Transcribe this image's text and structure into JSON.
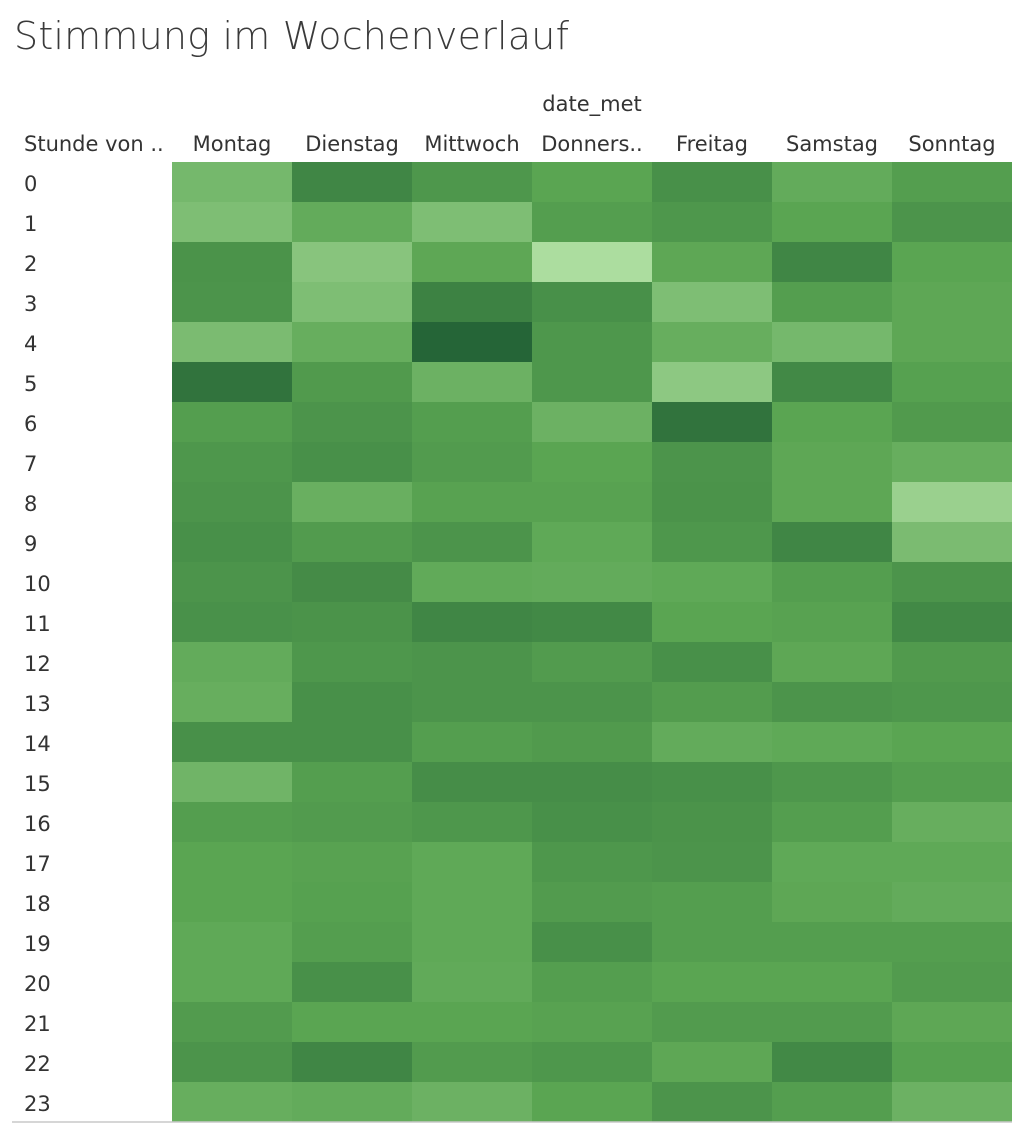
{
  "title": "Stimmung im Wochenverlauf",
  "chart_data": {
    "type": "heatmap",
    "title": "Stimmung im Wochenverlauf",
    "column_field_label": "date_met",
    "row_field_label": "Stunde von ..",
    "columns": [
      "Montag",
      "Dienstag",
      "Mittwoch",
      "Donners..",
      "Freitag",
      "Samstag",
      "Sonntag"
    ],
    "rows": [
      "0",
      "1",
      "2",
      "3",
      "4",
      "5",
      "6",
      "7",
      "8",
      "9",
      "10",
      "11",
      "12",
      "13",
      "14",
      "15",
      "16",
      "17",
      "18",
      "19",
      "20",
      "21",
      "22",
      "23"
    ],
    "values": [
      [
        0.35,
        0.72,
        0.6,
        0.5,
        0.65,
        0.45,
        0.55
      ],
      [
        0.3,
        0.45,
        0.3,
        0.55,
        0.6,
        0.5,
        0.62
      ],
      [
        0.63,
        0.25,
        0.48,
        0.05,
        0.48,
        0.72,
        0.5
      ],
      [
        0.62,
        0.3,
        0.75,
        0.65,
        0.3,
        0.55,
        0.48
      ],
      [
        0.32,
        0.43,
        0.95,
        0.6,
        0.43,
        0.35,
        0.48
      ],
      [
        0.85,
        0.58,
        0.4,
        0.6,
        0.22,
        0.7,
        0.53
      ],
      [
        0.55,
        0.62,
        0.55,
        0.4,
        0.85,
        0.5,
        0.58
      ],
      [
        0.6,
        0.65,
        0.57,
        0.5,
        0.62,
        0.48,
        0.43
      ],
      [
        0.62,
        0.42,
        0.52,
        0.52,
        0.63,
        0.48,
        0.15
      ],
      [
        0.65,
        0.57,
        0.62,
        0.47,
        0.6,
        0.72,
        0.32
      ],
      [
        0.62,
        0.68,
        0.46,
        0.45,
        0.47,
        0.55,
        0.62
      ],
      [
        0.64,
        0.63,
        0.72,
        0.7,
        0.5,
        0.52,
        0.7
      ],
      [
        0.45,
        0.6,
        0.62,
        0.57,
        0.65,
        0.48,
        0.58
      ],
      [
        0.43,
        0.65,
        0.62,
        0.62,
        0.56,
        0.62,
        0.6
      ],
      [
        0.65,
        0.65,
        0.55,
        0.58,
        0.45,
        0.47,
        0.5
      ],
      [
        0.38,
        0.55,
        0.67,
        0.67,
        0.65,
        0.6,
        0.55
      ],
      [
        0.55,
        0.57,
        0.6,
        0.65,
        0.63,
        0.55,
        0.43
      ],
      [
        0.5,
        0.52,
        0.47,
        0.6,
        0.62,
        0.47,
        0.47
      ],
      [
        0.5,
        0.53,
        0.47,
        0.57,
        0.55,
        0.48,
        0.45
      ],
      [
        0.47,
        0.55,
        0.47,
        0.65,
        0.55,
        0.55,
        0.55
      ],
      [
        0.47,
        0.65,
        0.46,
        0.55,
        0.5,
        0.5,
        0.57
      ],
      [
        0.57,
        0.5,
        0.5,
        0.52,
        0.57,
        0.57,
        0.48
      ],
      [
        0.62,
        0.72,
        0.57,
        0.6,
        0.48,
        0.7,
        0.53
      ],
      [
        0.43,
        0.45,
        0.4,
        0.5,
        0.62,
        0.55,
        0.4
      ]
    ],
    "color_scale": {
      "low": "#b5e3a8",
      "mid": "#5aa552",
      "high": "#1f5e34"
    },
    "legend": "none",
    "grid": false
  }
}
